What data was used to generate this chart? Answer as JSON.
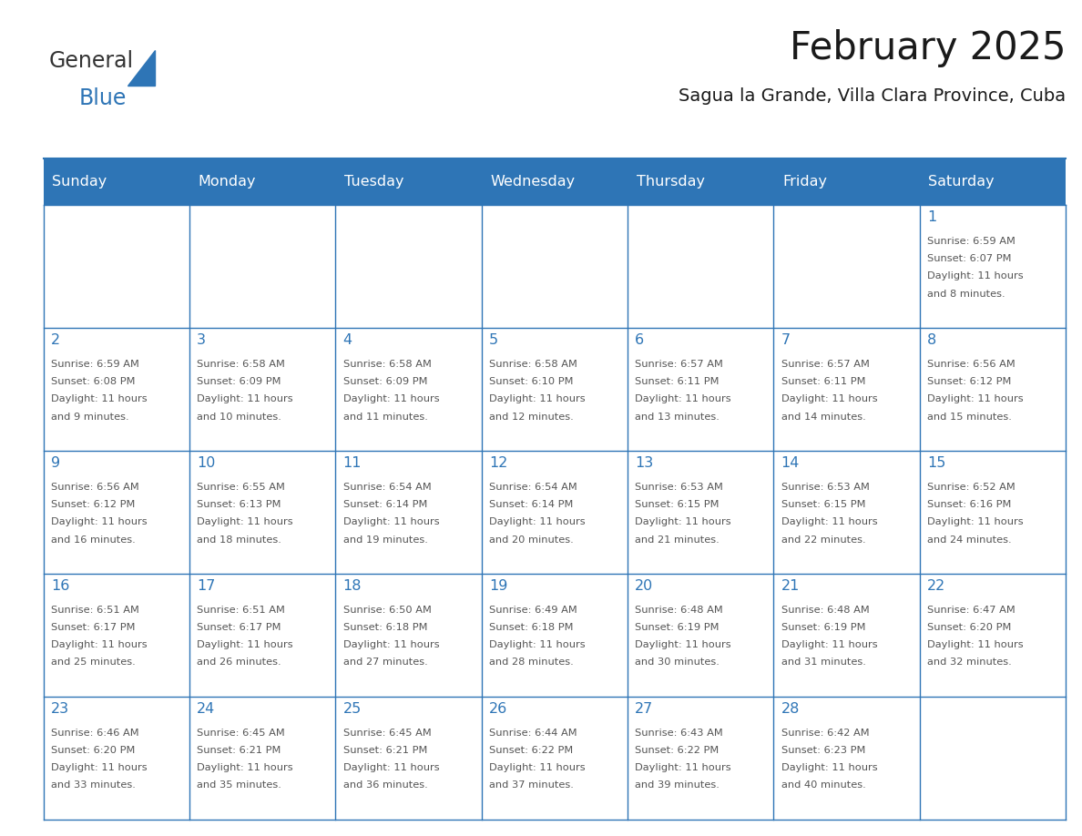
{
  "title": "February 2025",
  "subtitle": "Sagua la Grande, Villa Clara Province, Cuba",
  "header_color": "#2e75b6",
  "header_text_color": "#ffffff",
  "cell_bg_color": "#ffffff",
  "line_color": "#2e75b6",
  "day_names": [
    "Sunday",
    "Monday",
    "Tuesday",
    "Wednesday",
    "Thursday",
    "Friday",
    "Saturday"
  ],
  "logo_text1": "General",
  "logo_text2": "Blue",
  "logo_color1": "#333333",
  "logo_color2": "#2e75b6",
  "days": [
    {
      "day": 1,
      "col": 6,
      "row": 0,
      "sunrise": "6:59 AM",
      "sunset": "6:07 PM",
      "daylight": "11 hours and 8 minutes"
    },
    {
      "day": 2,
      "col": 0,
      "row": 1,
      "sunrise": "6:59 AM",
      "sunset": "6:08 PM",
      "daylight": "11 hours and 9 minutes"
    },
    {
      "day": 3,
      "col": 1,
      "row": 1,
      "sunrise": "6:58 AM",
      "sunset": "6:09 PM",
      "daylight": "11 hours and 10 minutes"
    },
    {
      "day": 4,
      "col": 2,
      "row": 1,
      "sunrise": "6:58 AM",
      "sunset": "6:09 PM",
      "daylight": "11 hours and 11 minutes"
    },
    {
      "day": 5,
      "col": 3,
      "row": 1,
      "sunrise": "6:58 AM",
      "sunset": "6:10 PM",
      "daylight": "11 hours and 12 minutes"
    },
    {
      "day": 6,
      "col": 4,
      "row": 1,
      "sunrise": "6:57 AM",
      "sunset": "6:11 PM",
      "daylight": "11 hours and 13 minutes"
    },
    {
      "day": 7,
      "col": 5,
      "row": 1,
      "sunrise": "6:57 AM",
      "sunset": "6:11 PM",
      "daylight": "11 hours and 14 minutes"
    },
    {
      "day": 8,
      "col": 6,
      "row": 1,
      "sunrise": "6:56 AM",
      "sunset": "6:12 PM",
      "daylight": "11 hours and 15 minutes"
    },
    {
      "day": 9,
      "col": 0,
      "row": 2,
      "sunrise": "6:56 AM",
      "sunset": "6:12 PM",
      "daylight": "11 hours and 16 minutes"
    },
    {
      "day": 10,
      "col": 1,
      "row": 2,
      "sunrise": "6:55 AM",
      "sunset": "6:13 PM",
      "daylight": "11 hours and 18 minutes"
    },
    {
      "day": 11,
      "col": 2,
      "row": 2,
      "sunrise": "6:54 AM",
      "sunset": "6:14 PM",
      "daylight": "11 hours and 19 minutes"
    },
    {
      "day": 12,
      "col": 3,
      "row": 2,
      "sunrise": "6:54 AM",
      "sunset": "6:14 PM",
      "daylight": "11 hours and 20 minutes"
    },
    {
      "day": 13,
      "col": 4,
      "row": 2,
      "sunrise": "6:53 AM",
      "sunset": "6:15 PM",
      "daylight": "11 hours and 21 minutes"
    },
    {
      "day": 14,
      "col": 5,
      "row": 2,
      "sunrise": "6:53 AM",
      "sunset": "6:15 PM",
      "daylight": "11 hours and 22 minutes"
    },
    {
      "day": 15,
      "col": 6,
      "row": 2,
      "sunrise": "6:52 AM",
      "sunset": "6:16 PM",
      "daylight": "11 hours and 24 minutes"
    },
    {
      "day": 16,
      "col": 0,
      "row": 3,
      "sunrise": "6:51 AM",
      "sunset": "6:17 PM",
      "daylight": "11 hours and 25 minutes"
    },
    {
      "day": 17,
      "col": 1,
      "row": 3,
      "sunrise": "6:51 AM",
      "sunset": "6:17 PM",
      "daylight": "11 hours and 26 minutes"
    },
    {
      "day": 18,
      "col": 2,
      "row": 3,
      "sunrise": "6:50 AM",
      "sunset": "6:18 PM",
      "daylight": "11 hours and 27 minutes"
    },
    {
      "day": 19,
      "col": 3,
      "row": 3,
      "sunrise": "6:49 AM",
      "sunset": "6:18 PM",
      "daylight": "11 hours and 28 minutes"
    },
    {
      "day": 20,
      "col": 4,
      "row": 3,
      "sunrise": "6:48 AM",
      "sunset": "6:19 PM",
      "daylight": "11 hours and 30 minutes"
    },
    {
      "day": 21,
      "col": 5,
      "row": 3,
      "sunrise": "6:48 AM",
      "sunset": "6:19 PM",
      "daylight": "11 hours and 31 minutes"
    },
    {
      "day": 22,
      "col": 6,
      "row": 3,
      "sunrise": "6:47 AM",
      "sunset": "6:20 PM",
      "daylight": "11 hours and 32 minutes"
    },
    {
      "day": 23,
      "col": 0,
      "row": 4,
      "sunrise": "6:46 AM",
      "sunset": "6:20 PM",
      "daylight": "11 hours and 33 minutes"
    },
    {
      "day": 24,
      "col": 1,
      "row": 4,
      "sunrise": "6:45 AM",
      "sunset": "6:21 PM",
      "daylight": "11 hours and 35 minutes"
    },
    {
      "day": 25,
      "col": 2,
      "row": 4,
      "sunrise": "6:45 AM",
      "sunset": "6:21 PM",
      "daylight": "11 hours and 36 minutes"
    },
    {
      "day": 26,
      "col": 3,
      "row": 4,
      "sunrise": "6:44 AM",
      "sunset": "6:22 PM",
      "daylight": "11 hours and 37 minutes"
    },
    {
      "day": 27,
      "col": 4,
      "row": 4,
      "sunrise": "6:43 AM",
      "sunset": "6:22 PM",
      "daylight": "11 hours and 39 minutes"
    },
    {
      "day": 28,
      "col": 5,
      "row": 4,
      "sunrise": "6:42 AM",
      "sunset": "6:23 PM",
      "daylight": "11 hours and 40 minutes"
    }
  ]
}
